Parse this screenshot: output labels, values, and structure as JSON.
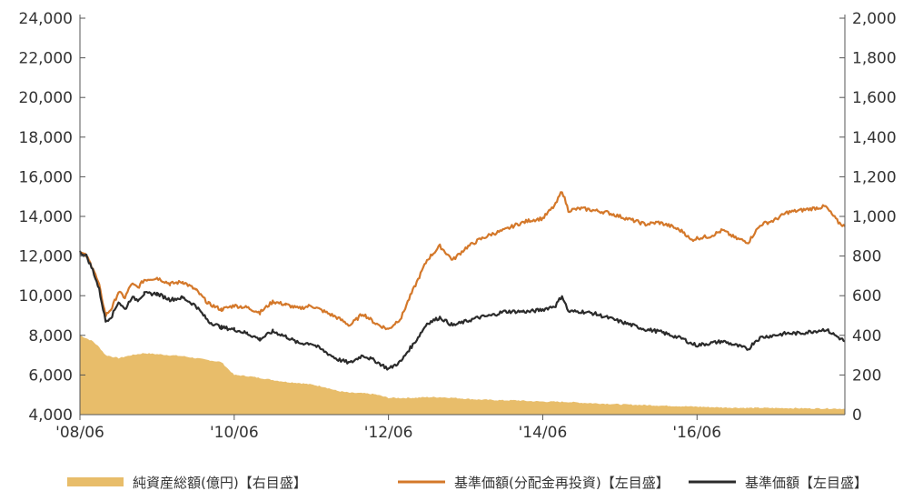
{
  "chart_data": {
    "type": "line",
    "x_ticks": [
      "'08/06",
      "'10/06",
      "'12/06",
      "'14/06",
      "'16/06"
    ],
    "x_tick_months": [
      0,
      24,
      48,
      72,
      96
    ],
    "x_range_months": [
      0,
      119
    ],
    "y_left": {
      "ticks": [
        "4,000",
        "6,000",
        "8,000",
        "10,000",
        "12,000",
        "14,000",
        "16,000",
        "18,000",
        "20,000",
        "22,000",
        "24,000"
      ],
      "range": [
        4000,
        24000
      ]
    },
    "y_right": {
      "ticks": [
        "0",
        "200",
        "400",
        "600",
        "800",
        "1,000",
        "1,200",
        "1,400",
        "1,600",
        "1,800",
        "2,000"
      ],
      "range": [
        0,
        2000
      ]
    },
    "grid": false,
    "legend_position": "bottom",
    "series": [
      {
        "name": "純資産総額(億円)【右目盛】",
        "kind": "area",
        "axis": "right",
        "color": "#e8bd6a",
        "x": [
          0,
          1,
          2,
          3,
          4,
          6,
          8,
          10,
          12,
          14,
          16,
          18,
          20,
          22,
          24,
          26,
          28,
          30,
          32,
          34,
          36,
          38,
          40,
          42,
          44,
          46,
          48,
          50,
          52,
          54,
          56,
          58,
          60,
          62,
          64,
          66,
          68,
          70,
          72,
          74,
          76,
          78,
          80,
          82,
          84,
          86,
          88,
          90,
          92,
          94,
          96,
          98,
          100,
          102,
          104,
          106,
          108,
          110,
          112,
          114,
          116,
          118,
          119
        ],
        "values": [
          400,
          385,
          370,
          340,
          300,
          285,
          300,
          310,
          305,
          300,
          295,
          285,
          275,
          265,
          200,
          195,
          185,
          175,
          165,
          160,
          152,
          140,
          120,
          110,
          108,
          102,
          85,
          84,
          85,
          88,
          88,
          85,
          80,
          76,
          74,
          72,
          72,
          68,
          66,
          65,
          64,
          60,
          57,
          55,
          52,
          50,
          48,
          46,
          44,
          42,
          40,
          38,
          36,
          35,
          34,
          34,
          33,
          33,
          32,
          31,
          31,
          30,
          29
        ]
      },
      {
        "name": "基準価額(分配金再投資)【左目盛】",
        "kind": "line",
        "axis": "left",
        "color": "#d4782a",
        "x": [
          0,
          1,
          2,
          3,
          4,
          5,
          6,
          7,
          8,
          9,
          10,
          12,
          14,
          16,
          18,
          20,
          22,
          24,
          26,
          28,
          30,
          32,
          34,
          36,
          38,
          40,
          42,
          44,
          46,
          48,
          50,
          51,
          52,
          54,
          56,
          58,
          60,
          62,
          64,
          66,
          68,
          70,
          72,
          74,
          75,
          76,
          78,
          80,
          82,
          84,
          86,
          88,
          90,
          92,
          94,
          95,
          96,
          98,
          100,
          102,
          104,
          105,
          106,
          108,
          110,
          112,
          114,
          116,
          117,
          118,
          119
        ],
        "values": [
          12200,
          12000,
          11400,
          10500,
          9000,
          9400,
          10200,
          9900,
          10600,
          10400,
          10800,
          10900,
          10600,
          10700,
          10300,
          9600,
          9300,
          9500,
          9400,
          9150,
          9700,
          9550,
          9350,
          9500,
          9200,
          8900,
          8500,
          9100,
          8600,
          8300,
          8900,
          9700,
          10400,
          11800,
          12500,
          11800,
          12400,
          12800,
          13100,
          13300,
          13600,
          13800,
          13900,
          14600,
          15300,
          14300,
          14400,
          14300,
          14200,
          14000,
          13800,
          13600,
          13700,
          13500,
          13200,
          12800,
          12900,
          13000,
          13300,
          12900,
          12700,
          13200,
          13600,
          13800,
          14200,
          14300,
          14400,
          14500,
          14100,
          13700,
          13500
        ]
      },
      {
        "name": "基準価額【左目盛】",
        "kind": "line",
        "axis": "left",
        "color": "#2b2b2b",
        "x": [
          0,
          1,
          2,
          3,
          4,
          5,
          6,
          7,
          8,
          9,
          10,
          12,
          14,
          16,
          18,
          20,
          22,
          24,
          26,
          28,
          30,
          32,
          34,
          36,
          38,
          40,
          42,
          44,
          46,
          48,
          50,
          51,
          52,
          54,
          56,
          58,
          60,
          62,
          64,
          66,
          68,
          70,
          72,
          74,
          75,
          76,
          78,
          80,
          82,
          84,
          86,
          88,
          90,
          92,
          94,
          95,
          96,
          98,
          100,
          102,
          104,
          105,
          106,
          108,
          110,
          112,
          114,
          116,
          117,
          118,
          119
        ],
        "values": [
          12200,
          12000,
          11300,
          10300,
          8700,
          9000,
          9700,
          9300,
          9900,
          9800,
          10100,
          10100,
          9800,
          9900,
          9500,
          8700,
          8400,
          8300,
          8100,
          7800,
          8200,
          7950,
          7600,
          7600,
          7200,
          6800,
          6600,
          7000,
          6700,
          6300,
          6700,
          7200,
          7600,
          8600,
          8900,
          8500,
          8700,
          8900,
          9000,
          9200,
          9200,
          9200,
          9300,
          9500,
          10000,
          9200,
          9200,
          9100,
          8900,
          8700,
          8500,
          8300,
          8200,
          8000,
          7800,
          7600,
          7500,
          7600,
          7700,
          7500,
          7300,
          7700,
          7900,
          8000,
          8100,
          8100,
          8200,
          8300,
          8100,
          7900,
          7700
        ]
      }
    ]
  }
}
